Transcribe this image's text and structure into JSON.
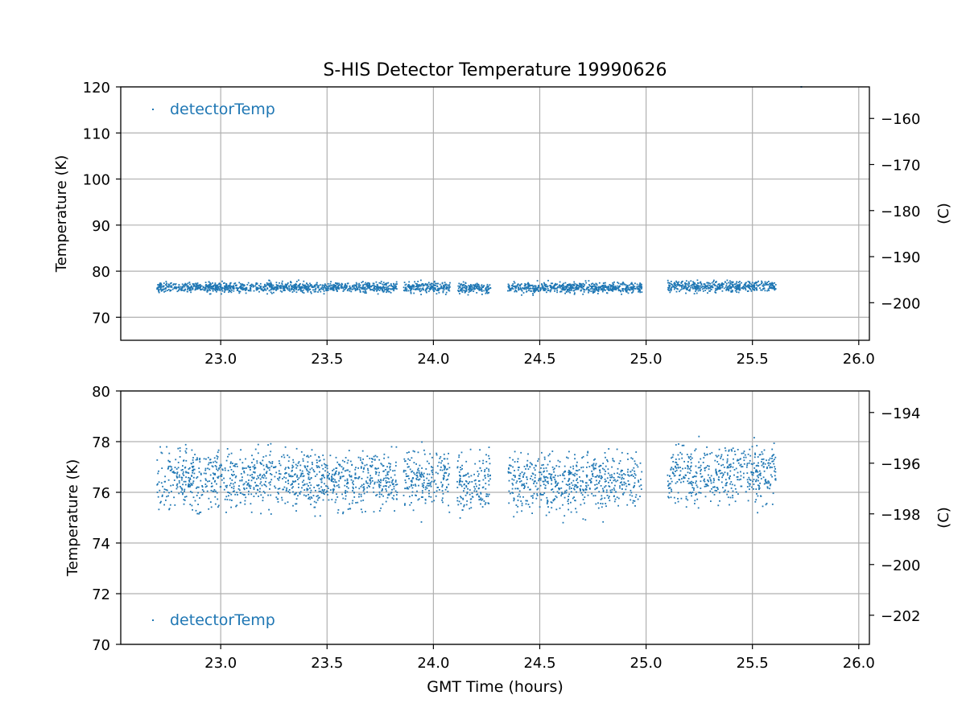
{
  "figure": {
    "title": "S-HIS Detector Temperature 19990626",
    "xlabel": "GMT Time (hours)"
  },
  "chart_data": [
    {
      "type": "scatter",
      "title": "S-HIS Detector Temperature 19990626",
      "xlabel": "",
      "ylabel": "Temperature (K)",
      "y2label": "(C)",
      "xlim": [
        22.53,
        26.05
      ],
      "ylim": [
        65,
        120
      ],
      "y2lim": [
        -208.15,
        -153.15
      ],
      "xticks": [
        23.0,
        23.5,
        24.0,
        24.5,
        25.0,
        25.5,
        26.0
      ],
      "xtick_labels": [
        "23.0",
        "23.5",
        "24.0",
        "24.5",
        "25.0",
        "25.5",
        "26.0"
      ],
      "yticks": [
        70,
        80,
        90,
        100,
        110,
        120
      ],
      "ytick_labels": [
        "70",
        "80",
        "90",
        "100",
        "110",
        "120"
      ],
      "y2ticks": [
        -200,
        -190,
        -180,
        -170,
        -160
      ],
      "y2tick_labels": [
        "−200",
        "−190",
        "−180",
        "−170",
        "−160"
      ],
      "grid": true,
      "legend_position": "upper-left",
      "series": [
        {
          "name": "detectorTemp",
          "color": "#1f77b4",
          "marker": "point",
          "segments": [
            {
              "x_start": 22.7,
              "x_end": 23.83,
              "mean": 76.5
            },
            {
              "x_start": 23.86,
              "x_end": 24.08,
              "mean": 76.5
            },
            {
              "x_start": 24.11,
              "x_end": 24.27,
              "mean": 76.4
            },
            {
              "x_start": 24.35,
              "x_end": 24.98,
              "mean": 76.4
            },
            {
              "x_start": 25.1,
              "x_end": 25.61,
              "mean": 76.7
            }
          ],
          "value_range": [
            74.5,
            79.2
          ],
          "outliers": [
            {
              "x": 25.73,
              "y": 120.0
            }
          ]
        }
      ]
    },
    {
      "type": "scatter",
      "title": "",
      "xlabel": "GMT Time (hours)",
      "ylabel": "Temperature (K)",
      "y2label": "(C)",
      "xlim": [
        22.53,
        26.05
      ],
      "ylim": [
        70,
        80
      ],
      "y2lim": [
        -203.15,
        -193.15
      ],
      "xticks": [
        23.0,
        23.5,
        24.0,
        24.5,
        25.0,
        25.5,
        26.0
      ],
      "xtick_labels": [
        "23.0",
        "23.5",
        "24.0",
        "24.5",
        "25.0",
        "25.5",
        "26.0"
      ],
      "yticks": [
        70,
        72,
        74,
        76,
        78,
        80
      ],
      "ytick_labels": [
        "70",
        "72",
        "74",
        "76",
        "78",
        "80"
      ],
      "y2ticks": [
        -202,
        -200,
        -198,
        -196,
        -194
      ],
      "y2tick_labels": [
        "−202",
        "−200",
        "−198",
        "−196",
        "−194"
      ],
      "grid": true,
      "legend_position": "lower-left",
      "series": [
        {
          "name": "detectorTemp",
          "color": "#1f77b4",
          "marker": "point",
          "segments": [
            {
              "x_start": 22.7,
              "x_end": 23.83,
              "mean": 76.5
            },
            {
              "x_start": 23.86,
              "x_end": 24.08,
              "mean": 76.5
            },
            {
              "x_start": 24.11,
              "x_end": 24.27,
              "mean": 76.4
            },
            {
              "x_start": 24.35,
              "x_end": 24.98,
              "mean": 76.4
            },
            {
              "x_start": 25.1,
              "x_end": 25.61,
              "mean": 76.7
            }
          ],
          "value_range": [
            74.5,
            79.2
          ],
          "outliers": []
        }
      ]
    }
  ]
}
